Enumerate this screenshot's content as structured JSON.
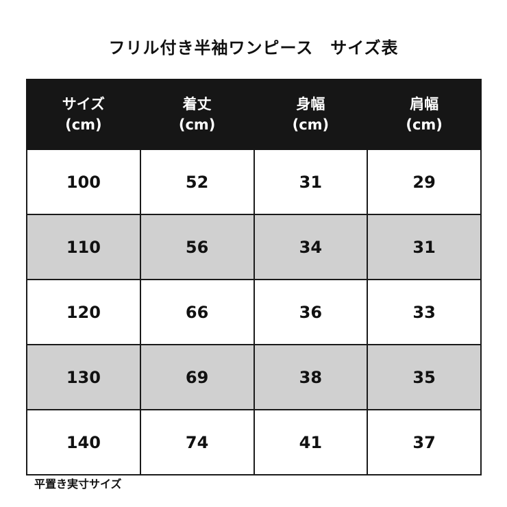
{
  "title": "フリル付き半袖ワンピース　サイズ表",
  "headers": [
    {
      "label": "サイズ",
      "unit": "(cm)"
    },
    {
      "label": "着丈",
      "unit": "(cm)"
    },
    {
      "label": "身幅",
      "unit": "(cm)"
    },
    {
      "label": "肩幅",
      "unit": "(cm)"
    }
  ],
  "rows": [
    [
      "100",
      "52",
      "31",
      "29"
    ],
    [
      "110",
      "56",
      "34",
      "31"
    ],
    [
      "120",
      "66",
      "36",
      "33"
    ],
    [
      "130",
      "69",
      "38",
      "35"
    ],
    [
      "140",
      "74",
      "41",
      "37"
    ]
  ],
  "note": "平置き実寸サイズ",
  "colors": {
    "header_bg": "#161616",
    "alt_row_bg": "#d0d0d0"
  }
}
